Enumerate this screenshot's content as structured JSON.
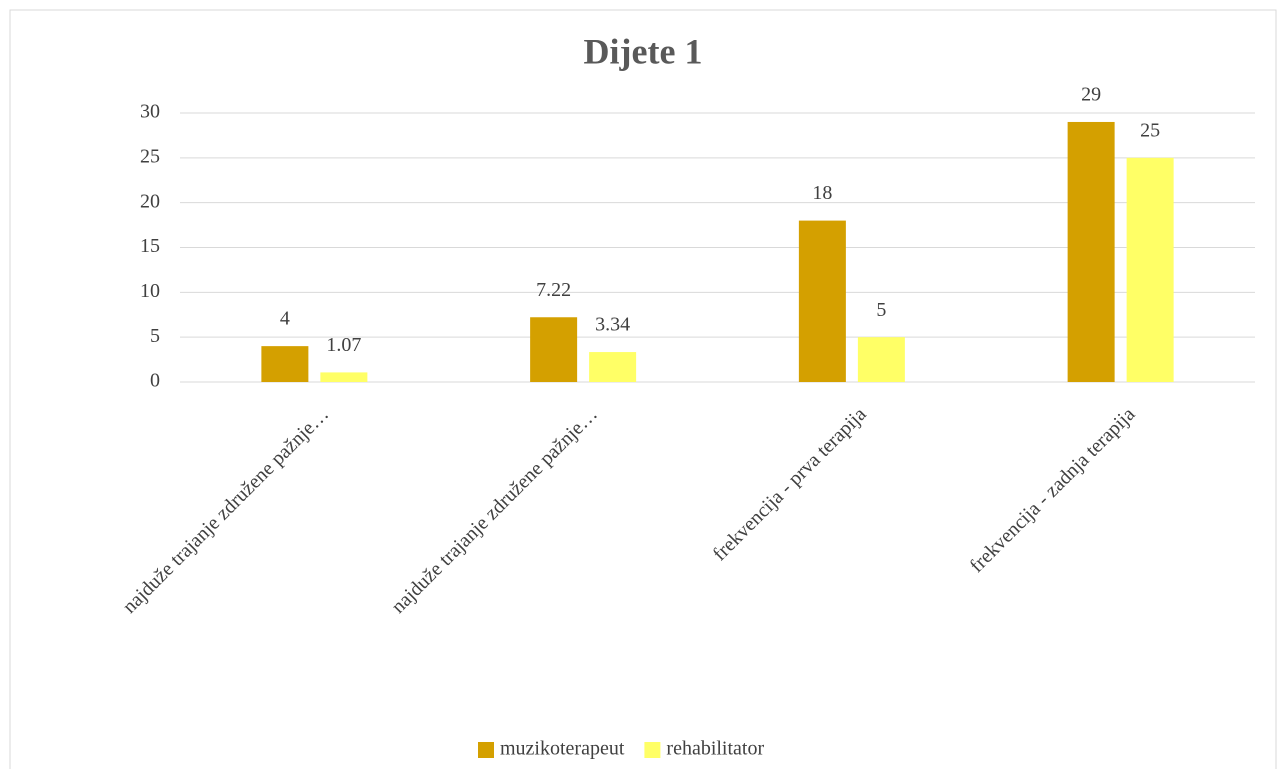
{
  "chart_data": {
    "type": "bar",
    "title": "Dijete 1",
    "categories": [
      "najduže trajanje združene pažnje…",
      "najduže trajanje združene pažnje…",
      "frekvencija - prva terapija",
      "frekvencija - zadnja terapija"
    ],
    "series": [
      {
        "name": "muzikoterapeut",
        "color": "#d4a000",
        "values": [
          4,
          7.22,
          18,
          29
        ]
      },
      {
        "name": "rehabilitator",
        "color": "#ffff66",
        "values": [
          1.07,
          3.34,
          5,
          25
        ]
      }
    ],
    "ylim": [
      0,
      30
    ],
    "yticks": [
      0,
      5,
      10,
      15,
      20,
      25,
      30
    ],
    "grid": true,
    "legend": "bottom"
  }
}
